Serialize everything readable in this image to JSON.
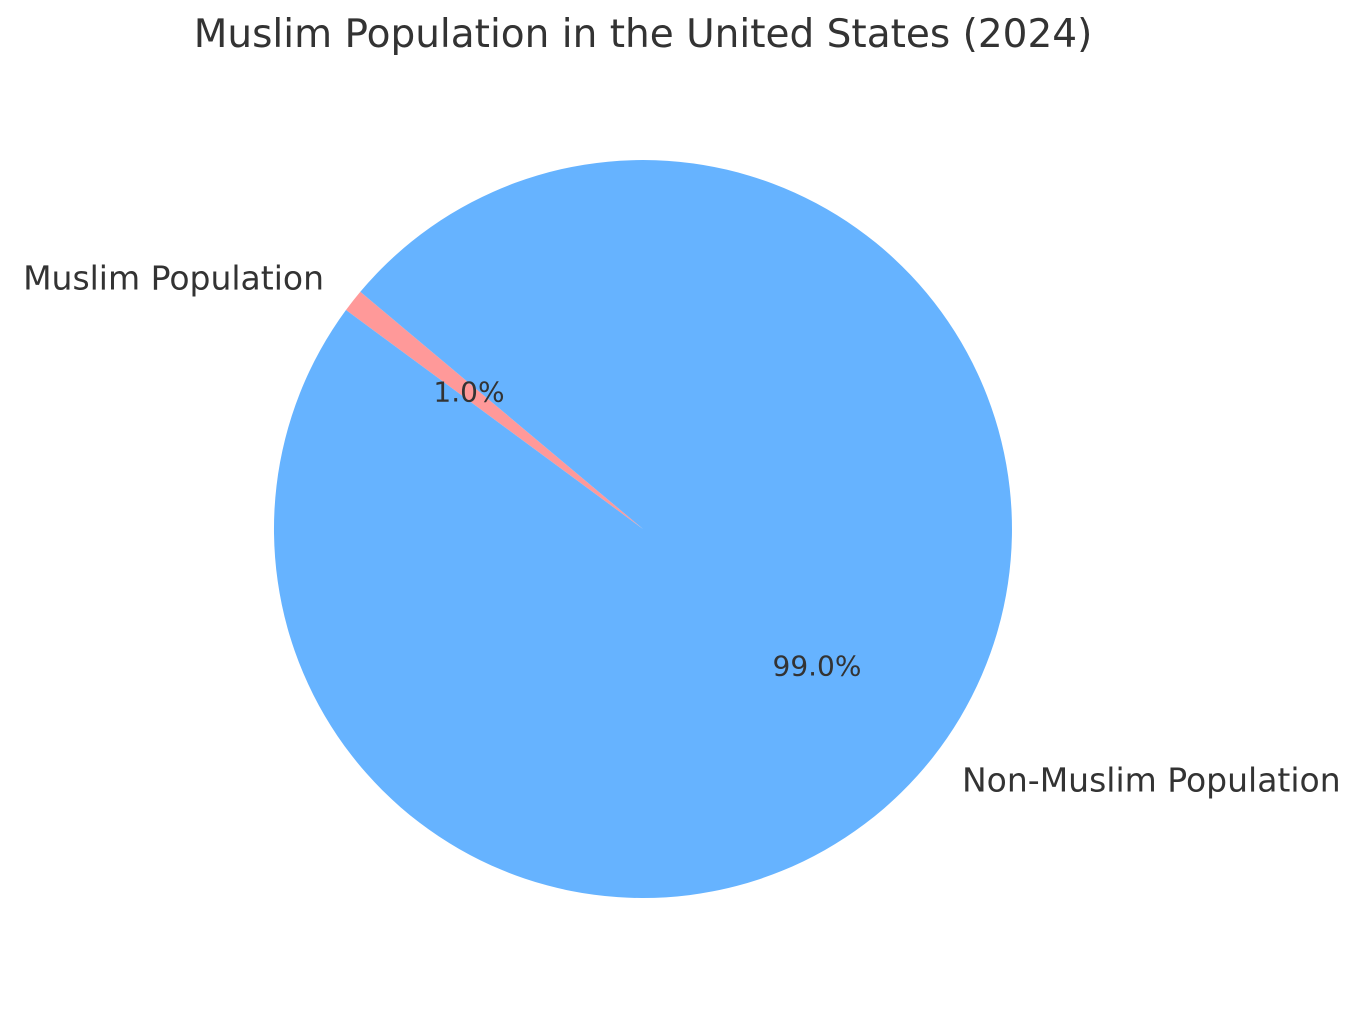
{
  "chart_data": {
    "type": "pie",
    "title": "Muslim Population in the United States (2024)",
    "labels": [
      "Muslim Population",
      "Non-Muslim Population"
    ],
    "values": [
      1.0,
      99.0
    ],
    "value_unit": "percent",
    "autopct_labels": [
      "1.0%",
      "99.0%"
    ],
    "colors": [
      "#ff9999",
      "#66b3ff"
    ],
    "text_color": "#333333",
    "background_color": "#ffffff",
    "start_angle": 140,
    "counterclock": true,
    "label_distance": 1.1,
    "pct_distance": 0.6,
    "legend": "none",
    "grid": "off"
  }
}
